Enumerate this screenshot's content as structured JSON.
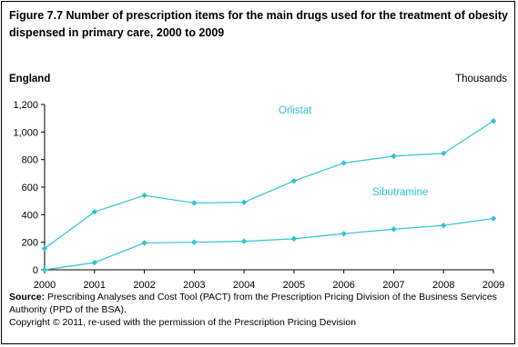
{
  "figure": {
    "title": "Figure 7.7 Number of prescription items for the main drugs used for the treatment of obesity dispensed in primary care, 2000 to 2009",
    "region": "England",
    "units": "Thousands"
  },
  "chart_data": {
    "type": "line",
    "x": [
      "2000",
      "2001",
      "2002",
      "2003",
      "2004",
      "2005",
      "2006",
      "2007",
      "2008",
      "2009"
    ],
    "y_ticks": [
      "0",
      "200",
      "400",
      "600",
      "800",
      "1,000",
      "1,200"
    ],
    "ylim": [
      0,
      1200
    ],
    "grid": false,
    "series": [
      {
        "name": "Orlistat",
        "values": [
          155,
          420,
          540,
          485,
          490,
          645,
          775,
          825,
          845,
          1080
        ]
      },
      {
        "name": "Sibutramine",
        "values": [
          0,
          52,
          195,
          200,
          207,
          225,
          262,
          295,
          322,
          372
        ]
      }
    ],
    "colors": {
      "line": "#2ec4d4",
      "axis": "#000000"
    }
  },
  "source": {
    "label": "Source:",
    "text": "Prescribing Analyses and Cost Tool (PACT) from the Prescription Pricing Division of the Business Services Authority (PPD of the BSA).",
    "copyright": "Copyright © 2011,  re-used with the permission of the Prescription Pricing Devision"
  }
}
